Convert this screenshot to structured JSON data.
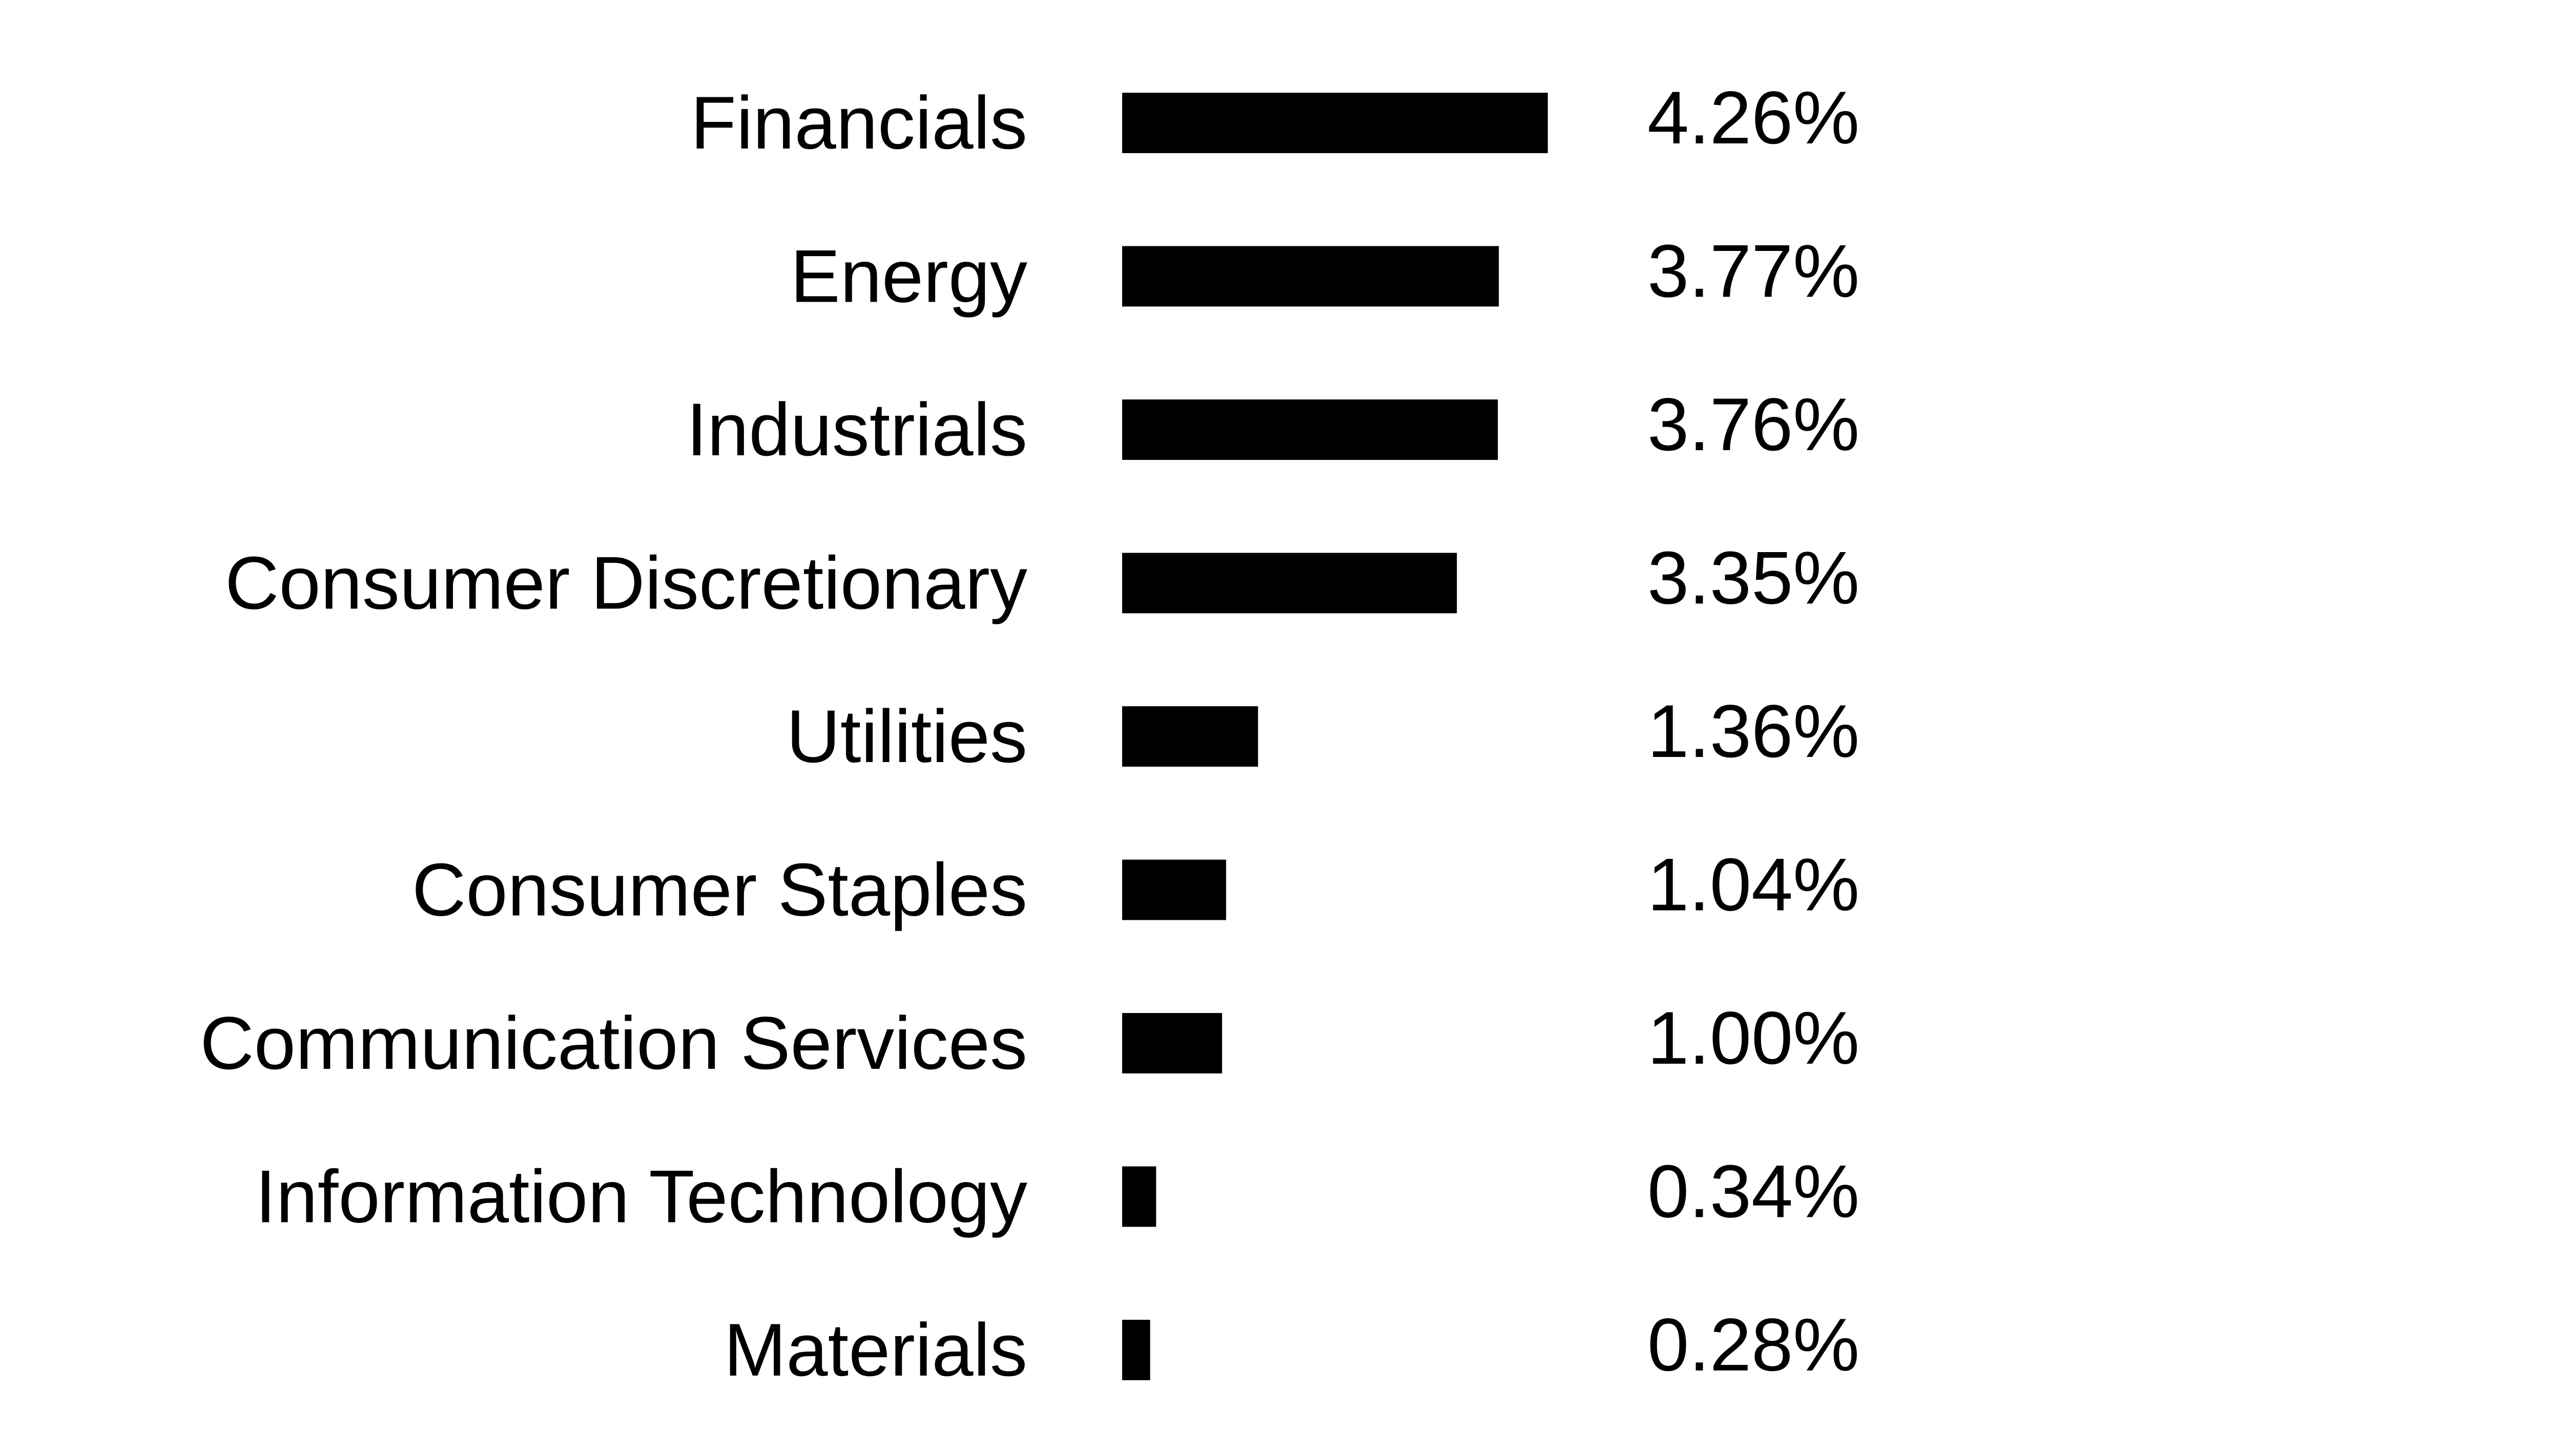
{
  "chart_data": {
    "type": "bar",
    "orientation": "horizontal",
    "title": "",
    "xlabel": "",
    "ylabel": "",
    "categories": [
      "Financials",
      "Energy",
      "Industrials",
      "Consumer Discretionary",
      "Utilities",
      "Consumer Staples",
      "Communication Services",
      "Information Technology",
      "Materials"
    ],
    "values": [
      4.26,
      3.77,
      3.76,
      3.35,
      1.36,
      1.04,
      1.0,
      0.34,
      0.28
    ],
    "value_labels": [
      "4.26%",
      "3.77%",
      "3.76%",
      "3.35%",
      "1.36%",
      "1.04%",
      "1.00%",
      "0.34%",
      "0.28%"
    ],
    "unit": "%",
    "grid": false,
    "legend": "none",
    "bar_color": "#000000"
  }
}
